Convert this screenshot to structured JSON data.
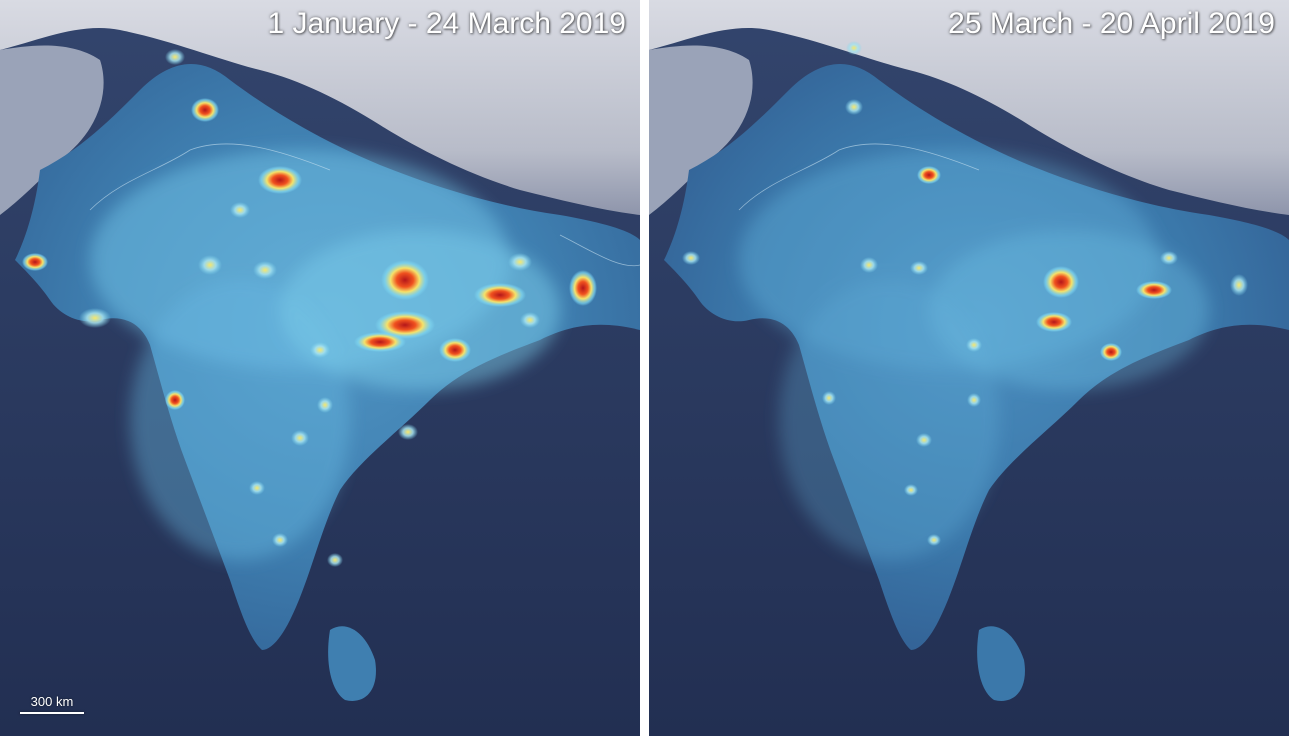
{
  "panels": [
    {
      "id": "before",
      "title": "1 January - 24 March 2019",
      "hotspot_scale": 1.0
    },
    {
      "id": "after",
      "title": "25 March - 20 April 2019",
      "hotspot_scale": 0.55
    }
  ],
  "scale_bar": {
    "label": "300 km"
  },
  "colors": {
    "ocean": "#28375e",
    "mountains": "#c9ccd6",
    "land_base": "#3f78a8",
    "glow_low": "#6fd0f0",
    "glow_mid": "#f5e86a",
    "glow_high": "#d93a1e",
    "divider": "#ffffff"
  }
}
